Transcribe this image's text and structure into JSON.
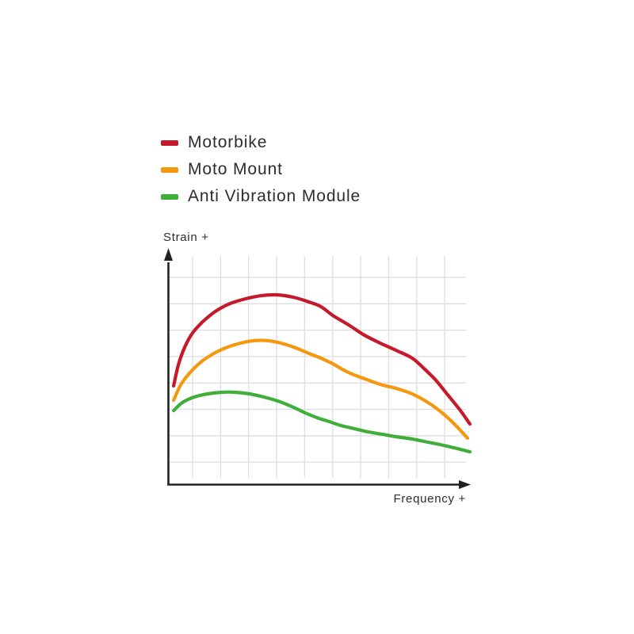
{
  "figure": {
    "background": "#ffffff"
  },
  "colors": {
    "axis": "#222221",
    "grid": "#dedede",
    "text": "#2d2d2b"
  },
  "chart_data": {
    "type": "line",
    "xlabel": "Frequency +",
    "ylabel": "Strain +",
    "x_unit": "arbitrary (axis unlabeled, qualitative)",
    "y_unit": "arbitrary (axis unlabeled, qualitative)",
    "xlim": [
      0,
      100
    ],
    "ylim": [
      0,
      100
    ],
    "grid": true,
    "legend_position": "top-left",
    "series": [
      {
        "name": "Motorbike",
        "color": "#c41a2b",
        "points": [
          [
            1.6,
            43.3
          ],
          [
            3.2,
            52.6
          ],
          [
            5.3,
            60.2
          ],
          [
            7.9,
            66.4
          ],
          [
            11.3,
            71.3
          ],
          [
            15.5,
            75.8
          ],
          [
            20.3,
            79.2
          ],
          [
            25.5,
            81.3
          ],
          [
            30.8,
            82.7
          ],
          [
            36.1,
            83.0
          ],
          [
            41.3,
            82.0
          ],
          [
            46.6,
            79.9
          ],
          [
            50.5,
            77.9
          ],
          [
            54.5,
            74.0
          ],
          [
            59.7,
            69.9
          ],
          [
            65.0,
            65.4
          ],
          [
            70.3,
            61.9
          ],
          [
            75.5,
            58.8
          ],
          [
            80.8,
            55.4
          ],
          [
            84.7,
            50.9
          ],
          [
            88.7,
            45.7
          ],
          [
            92.6,
            39.4
          ],
          [
            96.6,
            32.9
          ],
          [
            100,
            26.6
          ]
        ]
      },
      {
        "name": "Moto Mount",
        "color": "#f4990f",
        "points": [
          [
            1.6,
            37.0
          ],
          [
            3.9,
            43.6
          ],
          [
            6.6,
            48.4
          ],
          [
            10.3,
            53.3
          ],
          [
            14.5,
            57.1
          ],
          [
            18.9,
            59.9
          ],
          [
            23.7,
            61.9
          ],
          [
            28.2,
            63.0
          ],
          [
            32.9,
            63.0
          ],
          [
            37.4,
            61.9
          ],
          [
            42.1,
            59.9
          ],
          [
            46.6,
            57.4
          ],
          [
            50.5,
            55.4
          ],
          [
            54.5,
            52.9
          ],
          [
            59.7,
            49.1
          ],
          [
            65.0,
            46.4
          ],
          [
            70.3,
            43.9
          ],
          [
            75.5,
            42.2
          ],
          [
            80.8,
            39.8
          ],
          [
            86.1,
            36.0
          ],
          [
            90.8,
            31.5
          ],
          [
            95.3,
            26.0
          ],
          [
            99.2,
            20.4
          ]
        ]
      },
      {
        "name": "Anti Vibration Module",
        "color": "#3fae3a",
        "points": [
          [
            1.6,
            32.5
          ],
          [
            4.5,
            36.0
          ],
          [
            8.4,
            38.4
          ],
          [
            12.9,
            39.8
          ],
          [
            17.6,
            40.5
          ],
          [
            22.1,
            40.5
          ],
          [
            26.8,
            39.8
          ],
          [
            31.6,
            38.4
          ],
          [
            36.1,
            36.7
          ],
          [
            40.8,
            34.3
          ],
          [
            45.3,
            31.5
          ],
          [
            49.2,
            29.4
          ],
          [
            53.2,
            27.7
          ],
          [
            57.1,
            26.0
          ],
          [
            61.6,
            24.6
          ],
          [
            66.3,
            23.2
          ],
          [
            71.1,
            22.1
          ],
          [
            75.5,
            21.1
          ],
          [
            80.8,
            20.1
          ],
          [
            86.1,
            18.7
          ],
          [
            91.3,
            17.3
          ],
          [
            95.8,
            15.9
          ],
          [
            100,
            14.5
          ]
        ]
      }
    ]
  }
}
